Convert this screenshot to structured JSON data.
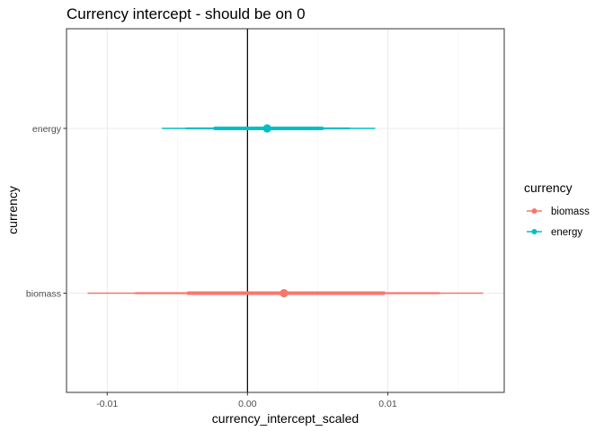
{
  "chart_data": {
    "type": "interval",
    "title": "Currency intercept - should be on 0",
    "xlabel": "currency_intercept_scaled",
    "ylabel": "currency",
    "xlim": [
      -0.0129,
      0.0183
    ],
    "x_ticks": [
      -0.01,
      0.0,
      0.01
    ],
    "x_tick_labels": [
      "-0.01",
      "0.00",
      "0.01"
    ],
    "categories": [
      "energy",
      "biomass"
    ],
    "reference_line_x": 0,
    "grid": true,
    "legend": {
      "title": "currency",
      "placement": "right",
      "entries": [
        {
          "label": "biomass",
          "color": "#F8766D"
        },
        {
          "label": "energy",
          "color": "#00BFC4"
        }
      ]
    },
    "series": [
      {
        "name": "energy",
        "category": "energy",
        "color": "#00BFC4",
        "point": 0.0014,
        "intervals": [
          {
            "level": "inner",
            "low": -0.0024,
            "high": 0.0054
          },
          {
            "level": "middle",
            "low": -0.0044,
            "high": 0.0073
          },
          {
            "level": "outer",
            "low": -0.0061,
            "high": 0.0091
          }
        ]
      },
      {
        "name": "biomass",
        "category": "biomass",
        "color": "#F8766D",
        "point": 0.0026,
        "intervals": [
          {
            "level": "inner",
            "low": -0.0043,
            "high": 0.0098
          },
          {
            "level": "middle",
            "low": -0.008,
            "high": 0.0137
          },
          {
            "level": "outer",
            "low": -0.0114,
            "high": 0.0168
          }
        ]
      }
    ]
  }
}
